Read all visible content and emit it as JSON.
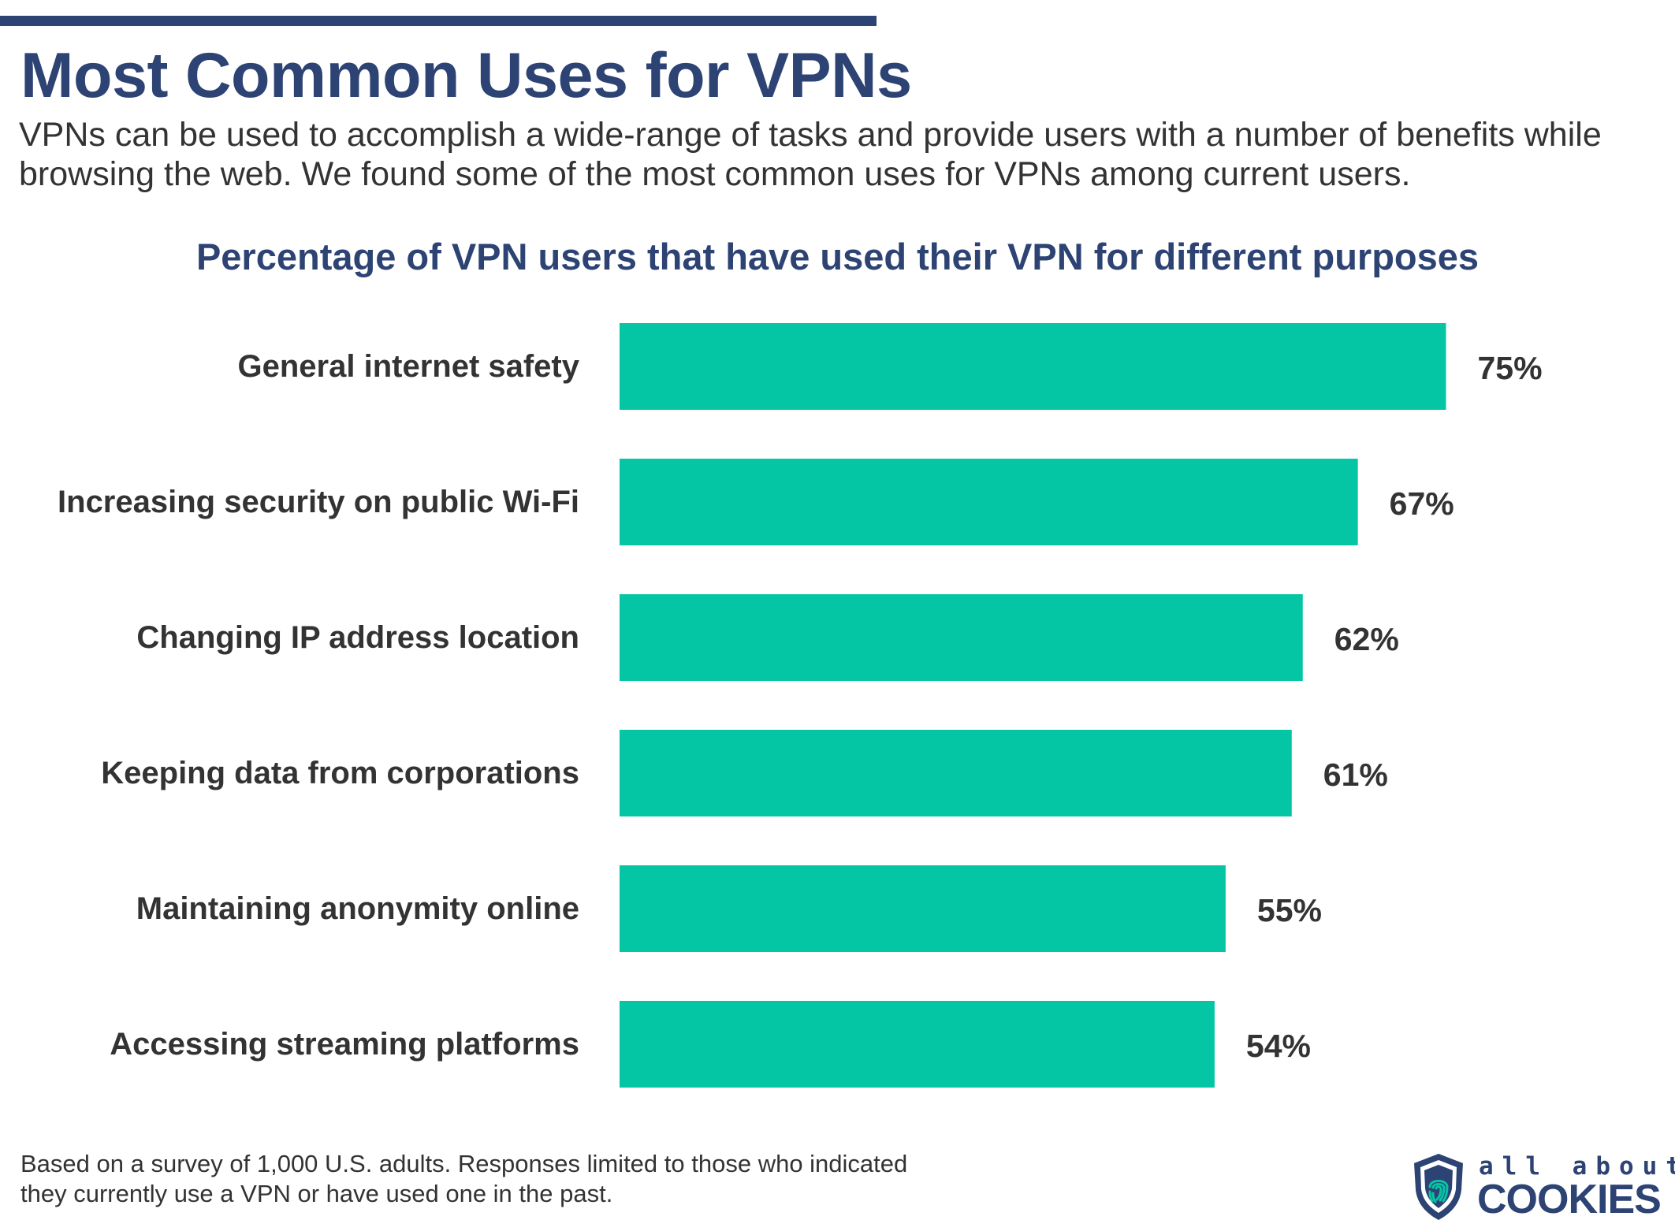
{
  "header": {
    "title": "Most Common Uses for VPNs",
    "subtitle": "VPNs can be used to accomplish a wide-range of tasks and provide users with a number of benefits while browsing the web. We found some of the most common uses for VPNs among current users."
  },
  "chart_data": {
    "type": "bar",
    "orientation": "horizontal",
    "title": "Percentage of VPN users that have used their VPN for different purposes",
    "categories": [
      "General internet safety",
      "Increasing security on public Wi-Fi",
      "Changing IP address location",
      "Keeping data from corporations",
      "Maintaining anonymity online",
      "Accessing streaming platforms"
    ],
    "values": [
      75,
      67,
      62,
      61,
      55,
      54
    ],
    "value_labels": [
      "75%",
      "67%",
      "62%",
      "61%",
      "55%",
      "54%"
    ],
    "unit": "%",
    "xlim": [
      0,
      100
    ],
    "grid": false,
    "bar_color": "#04c6a5"
  },
  "footnote": "Based on a survey of 1,000 U.S. adults. Responses limited to those who indicated they currently use a VPN or have used one in the past.",
  "logo": {
    "line1": "all about",
    "line2": "COOKIES",
    "icon": "shield-fingerprint-icon"
  },
  "colors": {
    "brand": "#2d4373",
    "bar": "#04c6a5",
    "text": "#333333"
  }
}
